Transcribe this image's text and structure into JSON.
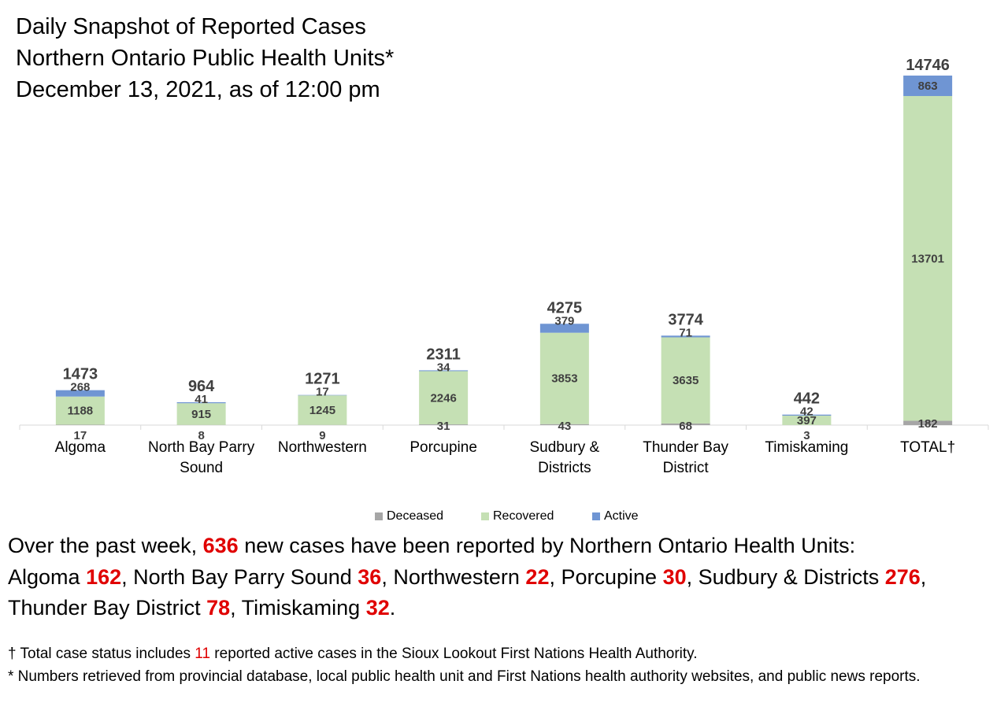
{
  "title_lines": [
    "Daily Snapshot of Reported Cases",
    "Northern Ontario Public Health Units*",
    "December 13, 2021, as of 12:00 pm"
  ],
  "colors": {
    "deceased": "#a6a6a6",
    "recovered": "#c5e0b4",
    "active": "#6f95d3",
    "highlight": "#e00000"
  },
  "chart_data": {
    "type": "bar",
    "stacked": true,
    "categories": [
      [
        "Algoma"
      ],
      [
        "North Bay Parry",
        "Sound"
      ],
      [
        "Northwestern"
      ],
      [
        "Porcupine"
      ],
      [
        "Sudbury &",
        "Districts"
      ],
      [
        "Thunder Bay",
        "District"
      ],
      [
        "Timiskaming"
      ],
      [
        "TOTAL†"
      ]
    ],
    "series": [
      {
        "name": "Deceased",
        "values": [
          17,
          8,
          9,
          31,
          43,
          68,
          3,
          182
        ]
      },
      {
        "name": "Recovered",
        "values": [
          1188,
          915,
          1245,
          2246,
          3853,
          3635,
          397,
          13701
        ]
      },
      {
        "name": "Active",
        "values": [
          268,
          41,
          17,
          34,
          379,
          71,
          42,
          863
        ]
      }
    ],
    "totals": [
      1473,
      964,
      1271,
      2311,
      4275,
      3774,
      442,
      14746
    ],
    "ylim": [
      0,
      14746
    ],
    "legend_position": "bottom",
    "grid": false
  },
  "summary": {
    "intro": "Over the past week, ",
    "total_new": "636",
    "intro_after": " new cases have been reported by Northern Ontario Health Units:",
    "items": [
      {
        "name": "Algoma ",
        "value": "162",
        "sep": ", "
      },
      {
        "name": "North Bay Parry Sound ",
        "value": "36",
        "sep": ", "
      },
      {
        "name": "Northwestern ",
        "value": "22",
        "sep": ", "
      },
      {
        "name": "Porcupine ",
        "value": "30",
        "sep": ", "
      },
      {
        "name": "Sudbury & Districts ",
        "value": "276",
        "sep": ","
      },
      {
        "name": "Thunder Bay District ",
        "value": "78",
        "sep": ", "
      },
      {
        "name": "Timiskaming ",
        "value": "32",
        "sep": "."
      }
    ]
  },
  "footnotes": {
    "dagger_before": "† Total case status includes ",
    "dagger_value": "11",
    "dagger_after": " reported active cases in the Sioux Lookout First Nations Health Authority.",
    "star": "* Numbers retrieved from provincial database, local public health unit and First Nations health authority websites, and public news reports."
  }
}
